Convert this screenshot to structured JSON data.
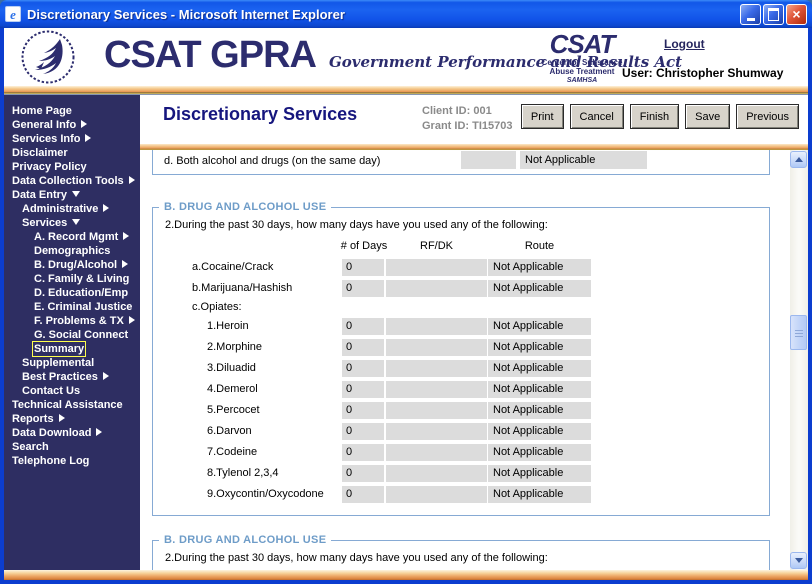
{
  "window": {
    "title": "Discretionary Services - Microsoft Internet Explorer"
  },
  "header": {
    "brand": "CSAT GPRA",
    "brand_sub": "Government Performance and Results Act",
    "csat_logo": {
      "title": "CSAT",
      "line1": "Center for Substance",
      "line2": "Abuse Treatment",
      "line3": "SAMHSA"
    },
    "logout": "Logout",
    "user": "User: Christopher Shumway"
  },
  "sidebar": {
    "items": [
      {
        "label": "Home Page",
        "arrow": null,
        "indent": 0,
        "selected": false
      },
      {
        "label": "General Info",
        "arrow": "right",
        "indent": 0,
        "selected": false
      },
      {
        "label": "Services Info",
        "arrow": "right",
        "indent": 0,
        "selected": false
      },
      {
        "label": "Disclaimer",
        "arrow": null,
        "indent": 0,
        "selected": false
      },
      {
        "label": "Privacy Policy",
        "arrow": null,
        "indent": 0,
        "selected": false
      },
      {
        "label": "Data Collection Tools",
        "arrow": "right",
        "indent": 0,
        "selected": false
      },
      {
        "label": "Data Entry",
        "arrow": "down",
        "indent": 0,
        "selected": false
      },
      {
        "label": "Administrative",
        "arrow": "right",
        "indent": 1,
        "selected": false
      },
      {
        "label": "Services",
        "arrow": "down",
        "indent": 1,
        "selected": false
      },
      {
        "label": "A. Record Mgmt",
        "arrow": "right",
        "indent": 2,
        "selected": false
      },
      {
        "label": "Demographics",
        "arrow": null,
        "indent": 2,
        "selected": false
      },
      {
        "label": "B. Drug/Alcohol",
        "arrow": "right",
        "indent": 2,
        "selected": false
      },
      {
        "label": "C. Family & Living",
        "arrow": null,
        "indent": 2,
        "selected": false
      },
      {
        "label": "D. Education/Emp",
        "arrow": null,
        "indent": 2,
        "selected": false
      },
      {
        "label": "E. Criminal Justice",
        "arrow": null,
        "indent": 2,
        "selected": false
      },
      {
        "label": "F. Problems & TX",
        "arrow": "right",
        "indent": 2,
        "selected": false
      },
      {
        "label": "G. Social Connect",
        "arrow": null,
        "indent": 2,
        "selected": false
      },
      {
        "label": "Summary",
        "arrow": null,
        "indent": 2,
        "selected": true
      },
      {
        "label": "Supplemental",
        "arrow": null,
        "indent": 1,
        "selected": false
      },
      {
        "label": "Best Practices",
        "arrow": "right",
        "indent": 1,
        "selected": false
      },
      {
        "label": "Contact Us",
        "arrow": null,
        "indent": 1,
        "selected": false
      },
      {
        "label": "Technical Assistance",
        "arrow": null,
        "indent": 0,
        "selected": false
      },
      {
        "label": "Reports",
        "arrow": "right",
        "indent": 0,
        "selected": false
      },
      {
        "label": "Data Download",
        "arrow": "right",
        "indent": 0,
        "selected": false
      },
      {
        "label": "Search",
        "arrow": null,
        "indent": 0,
        "selected": false
      },
      {
        "label": "Telephone Log",
        "arrow": null,
        "indent": 0,
        "selected": false
      }
    ]
  },
  "page": {
    "title": "Discretionary Services",
    "client_id": "Client ID: 001",
    "grant_id": "Grant ID: TI15703",
    "buttons": [
      "Print",
      "Cancel",
      "Finish",
      "Save",
      "Previous"
    ]
  },
  "form": {
    "prev_row": {
      "label": "d.  Both alcohol and drugs (on the same day)",
      "value": "",
      "route": "Not Applicable"
    },
    "section": {
      "legend": "B. DRUG AND ALCOHOL USE",
      "question": "2.During the past 30 days, how many days have you used any of the following:",
      "columns": [
        "# of Days",
        "RF/DK",
        "Route"
      ],
      "rows": [
        {
          "type": "data",
          "label": "a.Cocaine/Crack",
          "indent": 0,
          "days": "0",
          "rfdk": "",
          "route": "Not Applicable"
        },
        {
          "type": "data",
          "label": "b.Marijuana/Hashish",
          "indent": 0,
          "days": "0",
          "rfdk": "",
          "route": "Not Applicable"
        },
        {
          "type": "group",
          "label": "c.Opiates:"
        },
        {
          "type": "data",
          "label": "1.Heroin",
          "indent": 1,
          "days": "0",
          "rfdk": "",
          "route": "Not Applicable"
        },
        {
          "type": "data",
          "label": "2.Morphine",
          "indent": 1,
          "days": "0",
          "rfdk": "",
          "route": "Not Applicable"
        },
        {
          "type": "data",
          "label": "3.Diluadid",
          "indent": 1,
          "days": "0",
          "rfdk": "",
          "route": "Not Applicable"
        },
        {
          "type": "data",
          "label": "4.Demerol",
          "indent": 1,
          "days": "0",
          "rfdk": "",
          "route": "Not Applicable"
        },
        {
          "type": "data",
          "label": "5.Percocet",
          "indent": 1,
          "days": "0",
          "rfdk": "",
          "route": "Not Applicable"
        },
        {
          "type": "data",
          "label": "6.Darvon",
          "indent": 1,
          "days": "0",
          "rfdk": "",
          "route": "Not Applicable"
        },
        {
          "type": "data",
          "label": "7.Codeine",
          "indent": 1,
          "days": "0",
          "rfdk": "",
          "route": "Not Applicable"
        },
        {
          "type": "data",
          "label": "8.Tylenol 2,3,4",
          "indent": 1,
          "days": "0",
          "rfdk": "",
          "route": "Not Applicable"
        },
        {
          "type": "data",
          "label": "9.Oxycontin/Oxycodone",
          "indent": 1,
          "days": "0",
          "rfdk": "",
          "route": "Not Applicable"
        }
      ]
    },
    "section2": {
      "legend": "B. DRUG AND ALCOHOL USE",
      "question": "2.During the past 30 days, how many days have you used any of the following:"
    }
  }
}
